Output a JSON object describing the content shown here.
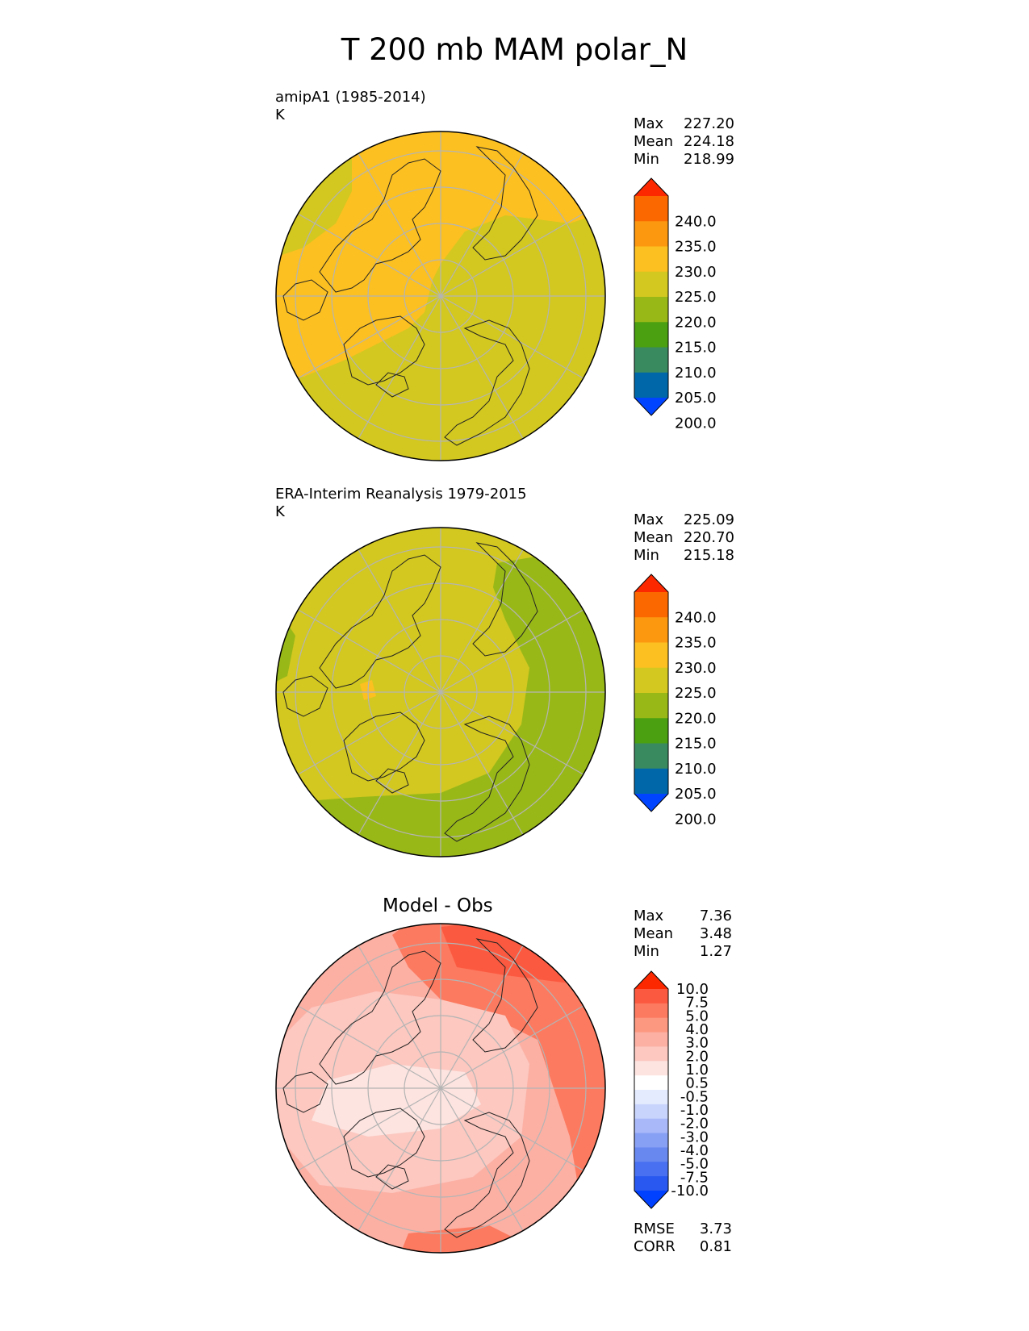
{
  "title": "T 200 mb MAM polar_N",
  "panels": [
    {
      "id": "model",
      "title_lines": [
        "amipA1 (1985-2014)",
        "K"
      ],
      "stats": [
        {
          "label": "Max",
          "value": "227.20"
        },
        {
          "label": "Mean",
          "value": "224.18"
        },
        {
          "label": "Min",
          "value": "218.99"
        }
      ],
      "colorbar_labels": [
        "240.0",
        "235.0",
        "230.0",
        "225.0",
        "220.0",
        "215.0",
        "210.0",
        "205.0",
        "200.0"
      ]
    },
    {
      "id": "obs",
      "title_lines": [
        "ERA-Interim Reanalysis 1979-2015",
        "K"
      ],
      "stats": [
        {
          "label": "Max",
          "value": "225.09"
        },
        {
          "label": "Mean",
          "value": "220.70"
        },
        {
          "label": "Min",
          "value": "215.18"
        }
      ],
      "colorbar_labels": [
        "240.0",
        "235.0",
        "230.0",
        "225.0",
        "220.0",
        "215.0",
        "210.0",
        "205.0",
        "200.0"
      ]
    },
    {
      "id": "diff",
      "center_title": "Model - Obs",
      "stats": [
        {
          "label": "Max",
          "value": "7.36"
        },
        {
          "label": "Mean",
          "value": "3.48"
        },
        {
          "label": "Min",
          "value": "1.27"
        }
      ],
      "colorbar_labels": [
        "10.0",
        "7.5",
        "5.0",
        "4.0",
        "3.0",
        "2.0",
        "1.0",
        "0.5",
        "-0.5",
        "-1.0",
        "-2.0",
        "-3.0",
        "-4.0",
        "-5.0",
        "-7.5",
        "-10.0"
      ],
      "footer_stats": [
        {
          "label": "RMSE",
          "value": "3.73"
        },
        {
          "label": "CORR",
          "value": "0.81"
        }
      ]
    }
  ],
  "colors": {
    "temperature_scale": [
      "#0044ff",
      "#0068a8",
      "#3a8a60",
      "#4aa010",
      "#98b818",
      "#d2c820",
      "#fcc020",
      "#fc9810",
      "#fc6800",
      "#fc2800"
    ],
    "difference_scale": [
      "#0040ff",
      "#2858f0",
      "#4870f0",
      "#6888f0",
      "#88a0f4",
      "#a8b8f8",
      "#c8d4fc",
      "#e4ebfe",
      "#ffffff",
      "#fde4e0",
      "#fcc8c0",
      "#fcb0a4",
      "#fc9880",
      "#fc7a60",
      "#fc5a40",
      "#fc2800"
    ],
    "gridline": "#b4b4b4"
  },
  "chart_data": [
    {
      "type": "heatmap",
      "projection": "north polar stereographic",
      "title": "amipA1 (1985-2014)",
      "units": "K",
      "levels": [
        200,
        205,
        210,
        215,
        220,
        225,
        230,
        235,
        240
      ],
      "extend": "both",
      "max": 227.2,
      "mean": 224.18,
      "min": 218.99
    },
    {
      "type": "heatmap",
      "projection": "north polar stereographic",
      "title": "ERA-Interim Reanalysis 1979-2015",
      "units": "K",
      "levels": [
        200,
        205,
        210,
        215,
        220,
        225,
        230,
        235,
        240
      ],
      "extend": "both",
      "max": 225.09,
      "mean": 220.7,
      "min": 215.18
    },
    {
      "type": "heatmap",
      "projection": "north polar stereographic",
      "title": "Model - Obs",
      "levels": [
        -10.0,
        -7.5,
        -5.0,
        -4.0,
        -3.0,
        -2.0,
        -1.0,
        -0.5,
        0.5,
        1.0,
        2.0,
        3.0,
        4.0,
        5.0,
        7.5,
        10.0
      ],
      "extend": "both",
      "max": 7.36,
      "mean": 3.48,
      "min": 1.27,
      "rmse": 3.73,
      "corr": 0.81
    }
  ]
}
